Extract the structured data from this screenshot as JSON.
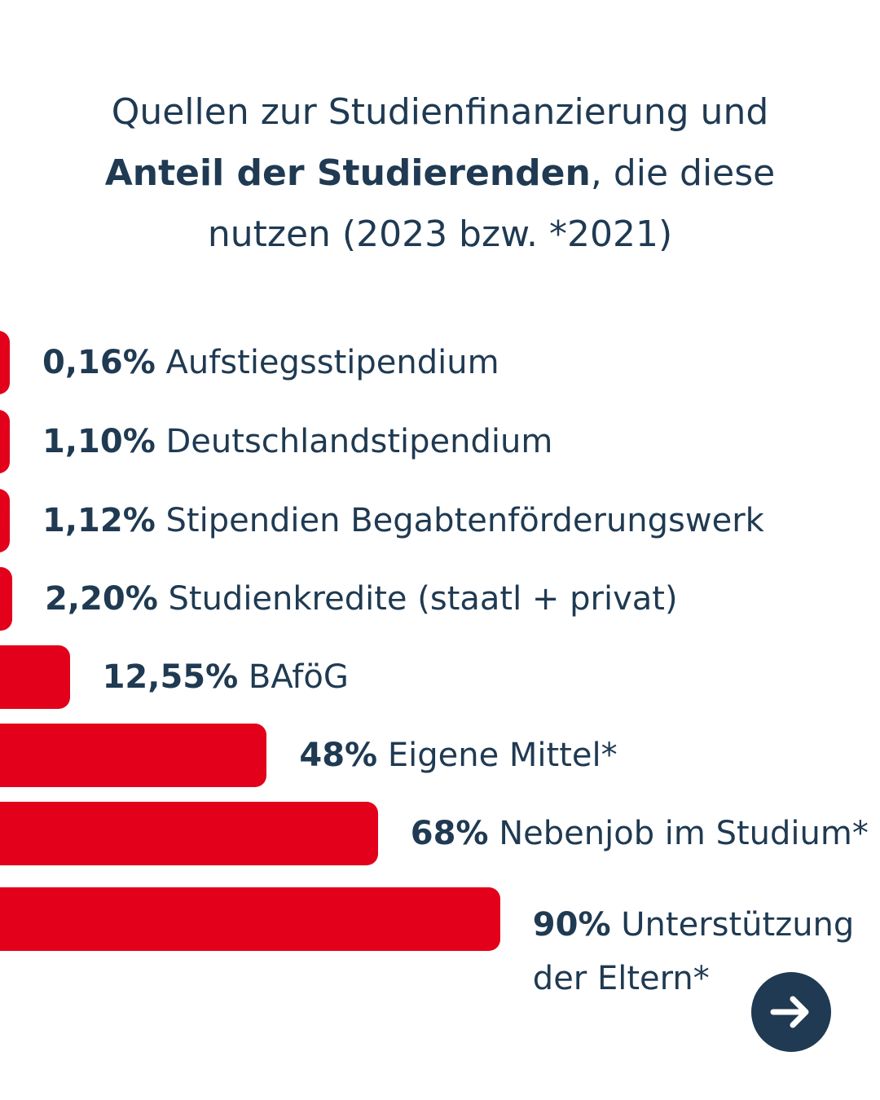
{
  "title": {
    "line1": "Quellen zur Studienfinanzierung und",
    "line2_bold": "Anteil der Studierenden",
    "line2_rest": ", die diese",
    "line3": "nutzen (2023 bzw. *2021)"
  },
  "chart_data": {
    "type": "bar",
    "orientation": "horizontal",
    "title": "Quellen zur Studienfinanzierung und Anteil der Studierenden, die diese nutzen (2023 bzw. *2021)",
    "unit": "%",
    "xlim": [
      0,
      100
    ],
    "categories": [
      "Aufstiegsstipendium",
      "Deutschlandstipendium",
      "Stipendien Begabtenförderungswerk",
      "Studienkredite (staatl + privat)",
      "BAföG",
      "Eigene Mittel*",
      "Nebenjob im Studium*",
      "Unterstützung der Eltern*"
    ],
    "values": [
      0.16,
      1.1,
      1.12,
      2.2,
      12.55,
      48,
      68,
      90
    ],
    "value_labels": [
      "0,16%",
      "1,10%",
      "1,12%",
      "2,20%",
      "12,55%",
      "48%",
      "68%",
      "90%"
    ],
    "bar_color": "#e2001a"
  },
  "labels": [
    {
      "pct": "0,16%",
      "lines": [
        "Aufstiegsstipendium"
      ]
    },
    {
      "pct": "1,10%",
      "lines": [
        "Deutschlandstipendium"
      ]
    },
    {
      "pct": "1,12%",
      "lines": [
        "Stipendien Begabtenförderungswerk"
      ]
    },
    {
      "pct": "2,20%",
      "lines": [
        "Studienkredite (staatl + privat)"
      ]
    },
    {
      "pct": "12,55%",
      "lines": [
        "BAföG"
      ]
    },
    {
      "pct": "48%",
      "lines": [
        "Eigene Mittel*"
      ]
    },
    {
      "pct": "68%",
      "lines": [
        "Nebenjob im Studium*"
      ]
    },
    {
      "pct": "90%",
      "lines": [
        "Unterstützung",
        "der Eltern*"
      ]
    }
  ],
  "colors": {
    "text": "#1f3a52",
    "bar": "#e2001a",
    "button": "#1f3a52",
    "background": "#ffffff"
  },
  "navigation": {
    "next_icon": "arrow-right-icon"
  }
}
